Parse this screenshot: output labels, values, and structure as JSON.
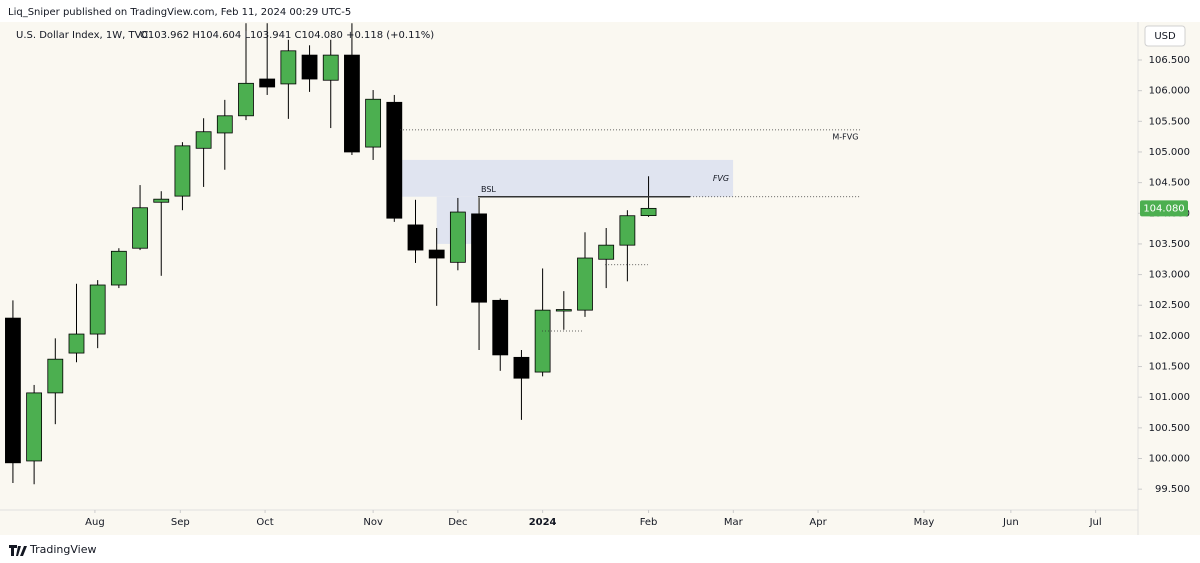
{
  "header": {
    "publisher": "Liq_Sniper published on TradingView.com, Feb 11, 2024 00:29 UTC-5",
    "symbol": "U.S. Dollar Index, 1W, TVC",
    "ohlc": "O103.962 H104.604 L103.941 C104.080 +0.118 (+0.11%)",
    "currency": "USD"
  },
  "footer": {
    "brand": "TradingView"
  },
  "chart_data": {
    "type": "candlestick",
    "x": [
      0,
      1,
      2,
      3,
      4,
      5,
      6,
      7,
      8,
      9,
      10,
      11,
      12,
      13,
      14,
      15,
      16,
      17,
      18,
      19,
      20,
      21,
      22,
      23,
      24,
      25,
      26,
      27,
      28,
      29,
      30
    ],
    "open": [
      102.29,
      99.96,
      101.07,
      101.72,
      102.03,
      102.83,
      103.43,
      104.18,
      104.28,
      105.06,
      105.31,
      105.59,
      106.19,
      106.11,
      106.58,
      106.17,
      106.58,
      105.08,
      105.81,
      103.81,
      103.4,
      103.2,
      103.99,
      102.58,
      101.65,
      101.41,
      102.41,
      102.42,
      103.25,
      103.48,
      103.962
    ],
    "high": [
      102.58,
      101.2,
      101.96,
      102.85,
      102.91,
      103.43,
      104.46,
      104.36,
      105.16,
      105.55,
      105.85,
      107.1,
      107.1,
      106.83,
      106.74,
      106.83,
      107.1,
      106.01,
      105.93,
      104.22,
      103.76,
      104.25,
      104.25,
      102.61,
      101.77,
      103.1,
      102.73,
      103.69,
      103.76,
      104.05,
      104.604
    ],
    "low": [
      99.6,
      99.58,
      100.56,
      101.57,
      101.8,
      102.78,
      103.4,
      102.98,
      104.05,
      104.43,
      104.71,
      105.52,
      105.93,
      105.54,
      105.98,
      105.39,
      104.95,
      104.87,
      103.86,
      103.19,
      102.49,
      103.07,
      101.77,
      101.43,
      100.63,
      101.34,
      102.1,
      102.31,
      102.78,
      102.89,
      103.941
    ],
    "close": [
      99.93,
      101.07,
      101.62,
      102.03,
      102.83,
      103.38,
      104.09,
      104.23,
      105.1,
      105.33,
      105.59,
      106.12,
      106.06,
      106.65,
      106.19,
      106.58,
      105.0,
      105.86,
      103.92,
      103.4,
      103.27,
      104.02,
      102.55,
      101.69,
      101.31,
      102.42,
      102.43,
      103.27,
      103.48,
      103.96,
      104.08
    ],
    "up_color": "#4caf50",
    "down_color": "#000000",
    "xlim": [
      -0.61,
      53.1
    ],
    "xticks": [
      {
        "value": 3.87,
        "label": "Aug"
      },
      {
        "value": 7.9,
        "label": "Sep"
      },
      {
        "value": 11.9,
        "label": "Oct"
      },
      {
        "value": 17.0,
        "label": "Nov"
      },
      {
        "value": 21.0,
        "label": "Dec"
      },
      {
        "value": 25.0,
        "label": "2024"
      },
      {
        "value": 30.0,
        "label": "Feb"
      },
      {
        "value": 34.0,
        "label": "Mar"
      },
      {
        "value": 38.0,
        "label": "Apr"
      },
      {
        "value": 43.0,
        "label": "May"
      },
      {
        "value": 47.1,
        "label": "Jun"
      },
      {
        "value": 51.1,
        "label": "Jul"
      }
    ],
    "ylim": [
      99.16,
      107.12
    ],
    "yticks": [
      {
        "value": 99.5,
        "label": "99.500"
      },
      {
        "value": 100,
        "label": "100.000"
      },
      {
        "value": 100.5,
        "label": "100.500"
      },
      {
        "value": 101,
        "label": "101.000"
      },
      {
        "value": 101.5,
        "label": "101.500"
      },
      {
        "value": 102,
        "label": "102.000"
      },
      {
        "value": 102.5,
        "label": "102.500"
      },
      {
        "value": 103,
        "label": "103.000"
      },
      {
        "value": 103.5,
        "label": "103.500"
      },
      {
        "value": 104,
        "label": "104.000"
      },
      {
        "value": 104.5,
        "label": "104.500"
      },
      {
        "value": 105,
        "label": "105.000"
      },
      {
        "value": 105.5,
        "label": "105.500"
      },
      {
        "value": 106,
        "label": "106.000"
      },
      {
        "value": 106.5,
        "label": "106.500"
      }
    ],
    "last_price": {
      "value": 104.08,
      "label": "104.080"
    },
    "zones": [
      {
        "label": "FVG",
        "top": 104.87,
        "bottom": 104.27,
        "x_from": 18.27,
        "x_to": 33.99,
        "color": "#dde1f0"
      },
      {
        "top": 104.27,
        "bottom": 103.5,
        "x_from": 20.0,
        "x_to": 21.95,
        "color": "#dde1f0"
      }
    ],
    "lines": [
      {
        "label": "M-FVG",
        "price": 105.36,
        "x_from": 18.27,
        "x_to": 40.0,
        "style": "dotted"
      },
      {
        "label": "BSL",
        "price": 104.27,
        "x_from": 21.95,
        "x_to": 31.96,
        "style": "solid"
      },
      {
        "price": 104.27,
        "x_from": 31.96,
        "x_to": 40.0,
        "style": "dotted"
      },
      {
        "price": 103.16,
        "x_from": 27.95,
        "x_to": 29.97,
        "style": "dotted"
      },
      {
        "price": 102.08,
        "x_from": 24.97,
        "x_to": 26.9,
        "style": "dotted"
      }
    ]
  }
}
